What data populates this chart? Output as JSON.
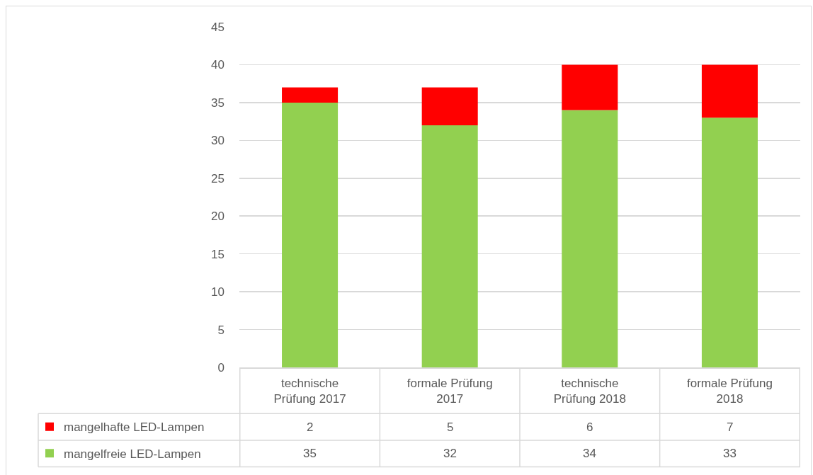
{
  "chart_data": {
    "type": "bar",
    "stacked": true,
    "categories": [
      "technische Prüfung 2017",
      "formale Prüfung 2017",
      "technische Prüfung 2018",
      "formale Prüfung 2018"
    ],
    "series": [
      {
        "name": "mangelfreie LED-Lampen",
        "color": "#92d050",
        "values": [
          35,
          32,
          34,
          33
        ]
      },
      {
        "name": "mangelhafte LED-Lampen",
        "color": "#ff0000",
        "values": [
          2,
          5,
          6,
          7
        ]
      }
    ],
    "ylim": [
      0,
      45
    ],
    "yticks": [
      0,
      5,
      10,
      15,
      20,
      25,
      30,
      35,
      40,
      45
    ],
    "grid": "y",
    "legend": "bottom left",
    "data_labels": true
  }
}
